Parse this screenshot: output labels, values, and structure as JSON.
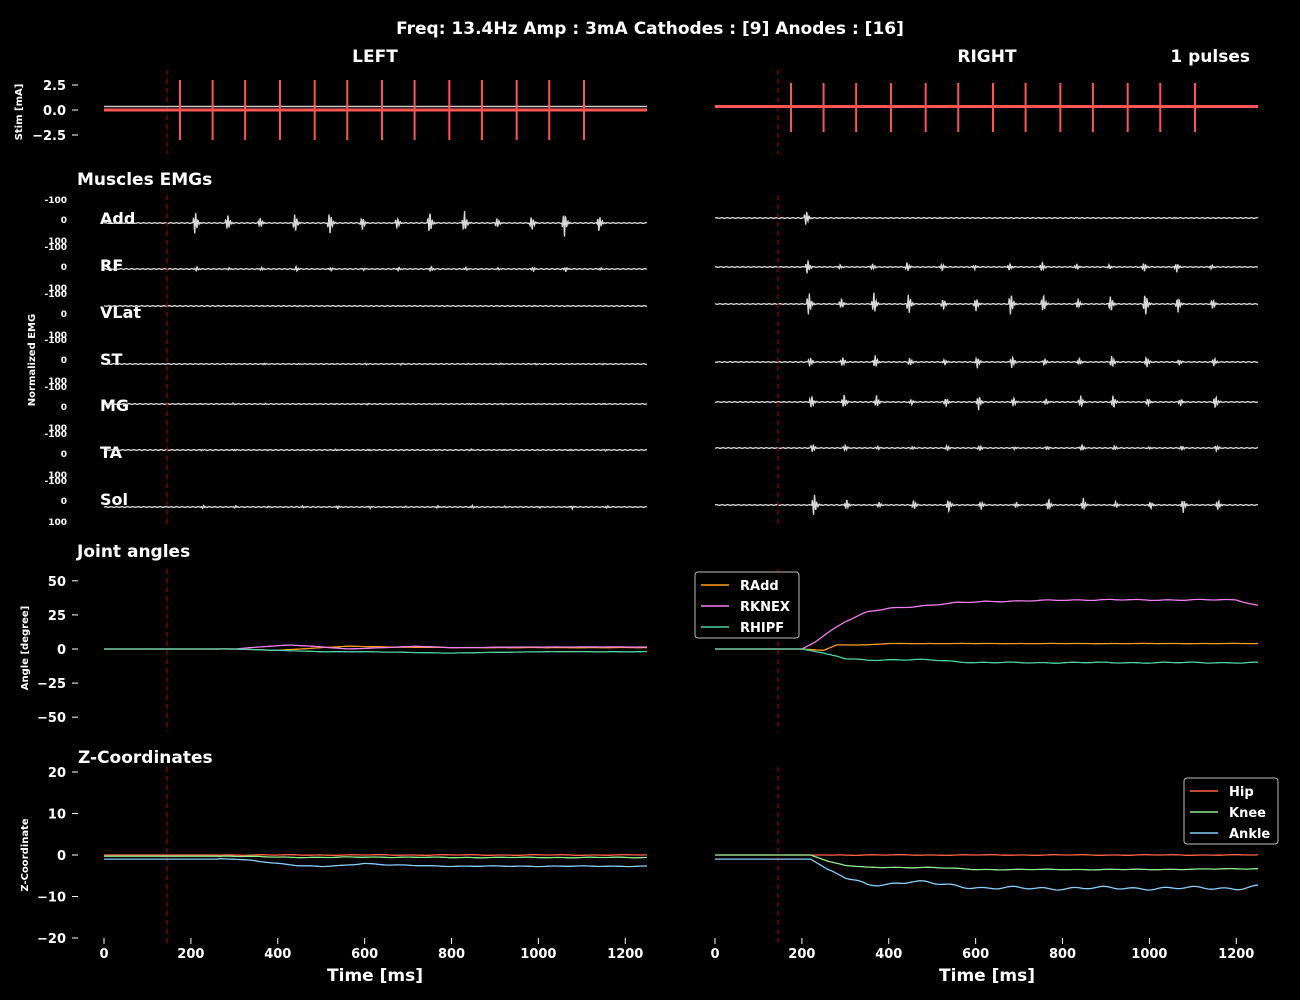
{
  "figure": {
    "title": "Freq: 13.4Hz  Amp : 3mA  Cathodes : [9]  Anodes : [16]",
    "left_title": "LEFT",
    "right_title": "RIGHT",
    "pulses_label": "1 pulses",
    "section_emg": "Muscles EMGs",
    "section_joint": "Joint angles",
    "section_z": "Z-Coordinates",
    "ylabel_stim": "Stim [mA]",
    "ylabel_emg": "Normalized EMG",
    "ylabel_angle": "Angle [degree]",
    "ylabel_z": "Z-Coordinate",
    "xlabel": "Time [ms]",
    "emg_tick_labels": [
      "-100",
      "0",
      "100"
    ]
  },
  "chart_data": {
    "type": "line",
    "x_unit": "ms",
    "xlim": [
      0,
      1250
    ],
    "x_ticks": [
      0,
      200,
      400,
      600,
      800,
      1000,
      1200
    ],
    "stim_onset_ms": 145,
    "colors": {
      "stim": "#ff5555",
      "emg": "#d8d8d8",
      "onset": "#8b0000",
      "RAdd": "#ff9f1c",
      "RKNEX": "#f07ef0",
      "RHIPF": "#4fd1a5",
      "Hip": "#ff6347",
      "Knee": "#90ee90",
      "Ankle": "#87cefa"
    },
    "stim": {
      "ylim": [
        -4,
        4
      ],
      "y_ticks": [
        2.5,
        0.0,
        -2.5
      ],
      "y_tick_labels": [
        "2.5",
        "0.0",
        "−2.5"
      ],
      "pulse_amplitude_mA": 3,
      "left_pulses_ms": [
        175,
        250,
        325,
        405,
        485,
        560,
        640,
        715,
        795,
        870,
        950,
        1025,
        1105
      ],
      "right_pulses_ms": [
        175,
        250,
        325,
        405,
        485,
        560,
        640,
        715,
        795,
        870,
        950,
        1025,
        1105
      ]
    },
    "emg": {
      "muscles": [
        "Add",
        "RF",
        "VLat",
        "ST",
        "MG",
        "TA",
        "Sol"
      ],
      "left_amplitude": [
        1.0,
        0.2,
        0.03,
        0.06,
        0.05,
        0.06,
        0.12
      ],
      "right_amplitude": [
        0.35,
        0.4,
        1.0,
        0.55,
        0.6,
        0.25,
        0.55
      ]
    },
    "joint_angles": {
      "ylim": [
        -55,
        55
      ],
      "y_ticks": [
        50,
        25,
        0,
        -25,
        -50
      ],
      "y_tick_labels": [
        "50",
        "25",
        "0",
        "−25",
        "−50"
      ],
      "legend": [
        "RAdd",
        "RKNEX",
        "RHIPF"
      ],
      "legend_position": "top-left",
      "left": {
        "RAdd": {
          "x": [
            0,
            300,
            400,
            500,
            560,
            650,
            800,
            1000,
            1250
          ],
          "y": [
            0,
            0,
            -1,
            1,
            2,
            1.5,
            1,
            1,
            1
          ]
        },
        "RKNEX": {
          "x": [
            0,
            300,
            380,
            430,
            480,
            560,
            640,
            720,
            800,
            1000,
            1250
          ],
          "y": [
            0,
            0,
            2,
            3,
            2,
            0,
            1,
            2,
            1,
            1.5,
            1.5
          ]
        },
        "RHIPF": {
          "x": [
            0,
            300,
            400,
            500,
            600,
            800,
            1000,
            1250
          ],
          "y": [
            0,
            0,
            -1,
            -2,
            -2,
            -3,
            -2,
            -2
          ]
        }
      },
      "right": {
        "RAdd": {
          "x": [
            0,
            200,
            250,
            280,
            300,
            350,
            400,
            600,
            800,
            1000,
            1250
          ],
          "y": [
            0,
            0,
            -1,
            3,
            3,
            3,
            4,
            4,
            4,
            4,
            4
          ]
        },
        "RKNEX": {
          "x": [
            0,
            200,
            230,
            260,
            300,
            350,
            400,
            450,
            500,
            560,
            620,
            700,
            800,
            900,
            1000,
            1100,
            1200,
            1250
          ],
          "y": [
            0,
            0,
            5,
            12,
            20,
            27,
            30,
            31,
            32,
            34,
            35,
            35,
            36,
            36,
            36,
            36,
            36,
            32
          ]
        },
        "RHIPF": {
          "x": [
            0,
            200,
            250,
            300,
            350,
            400,
            500,
            600,
            800,
            1000,
            1250
          ],
          "y": [
            0,
            0,
            -3,
            -7,
            -8,
            -8,
            -8,
            -10,
            -10,
            -10,
            -10
          ]
        }
      }
    },
    "z_coordinates": {
      "ylim": [
        -20,
        20
      ],
      "y_ticks": [
        20,
        10,
        0,
        -10,
        -20
      ],
      "y_tick_labels": [
        "20",
        "10",
        "0",
        "−10",
        "−20"
      ],
      "legend": [
        "Hip",
        "Knee",
        "Ankle"
      ],
      "legend_position": "top-right",
      "left": {
        "Hip": {
          "x": [
            0,
            1250
          ],
          "y": [
            0,
            0
          ]
        },
        "Knee": {
          "x": [
            0,
            300,
            400,
            500,
            600,
            800,
            1000,
            1250
          ],
          "y": [
            -0.3,
            -0.3,
            -0.5,
            -0.6,
            -0.5,
            -0.6,
            -0.6,
            -0.6
          ]
        },
        "Ankle": {
          "x": [
            0,
            300,
            340,
            400,
            450,
            500,
            550,
            600,
            650,
            800,
            1000,
            1250
          ],
          "y": [
            -1,
            -1,
            -1.3,
            -2,
            -2.6,
            -2.8,
            -2.5,
            -2,
            -2.4,
            -2.7,
            -2.7,
            -2.7
          ]
        }
      },
      "right": {
        "Hip": {
          "x": [
            0,
            1250
          ],
          "y": [
            0,
            0
          ]
        },
        "Knee": {
          "x": [
            0,
            220,
            260,
            300,
            350,
            400,
            500,
            600,
            800,
            1000,
            1250
          ],
          "y": [
            0,
            0,
            -1.5,
            -2.5,
            -3,
            -3,
            -3,
            -3.5,
            -3.5,
            -3.5,
            -3.3
          ]
        },
        "Ankle": {
          "x": [
            0,
            220,
            260,
            300,
            350,
            400,
            450,
            500,
            560,
            620,
            700,
            800,
            1000,
            1200,
            1250
          ],
          "y": [
            -1,
            -1,
            -3.5,
            -5.5,
            -7,
            -7,
            -6.5,
            -6.8,
            -7.4,
            -8,
            -8,
            -8,
            -8,
            -8,
            -7.5
          ]
        }
      }
    }
  }
}
